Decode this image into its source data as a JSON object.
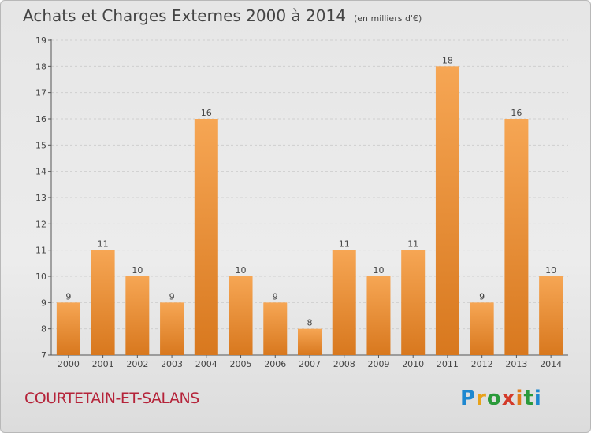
{
  "header": {
    "title": "Achats et Charges Externes 2000 à 2014",
    "unit": "(en milliers d'€)"
  },
  "footer": {
    "location": "COURTETAIN-ET-SALANS",
    "brand": "Proxiti"
  },
  "colors": {
    "bar_light": "#f6a654",
    "bar_dark": "#d8781e",
    "axis": "#555555",
    "grid": "#cfcfcf",
    "text": "#444444",
    "location": "#b5243a"
  },
  "chart_data": {
    "type": "bar",
    "title": "Achats et Charges Externes 2000 à 2014",
    "subtitle": "(en milliers d'€)",
    "xlabel": "",
    "ylabel": "",
    "categories": [
      "2000",
      "2001",
      "2002",
      "2003",
      "2004",
      "2005",
      "2006",
      "2007",
      "2008",
      "2009",
      "2010",
      "2011",
      "2012",
      "2013",
      "2014"
    ],
    "values": [
      9,
      11,
      10,
      9,
      16,
      10,
      9,
      8,
      11,
      10,
      11,
      18,
      9,
      16,
      10
    ],
    "ylim": [
      7,
      19
    ],
    "yticks": [
      7,
      8,
      9,
      10,
      11,
      12,
      13,
      14,
      15,
      16,
      17,
      18,
      19
    ],
    "grid": true,
    "data_labels": true
  }
}
